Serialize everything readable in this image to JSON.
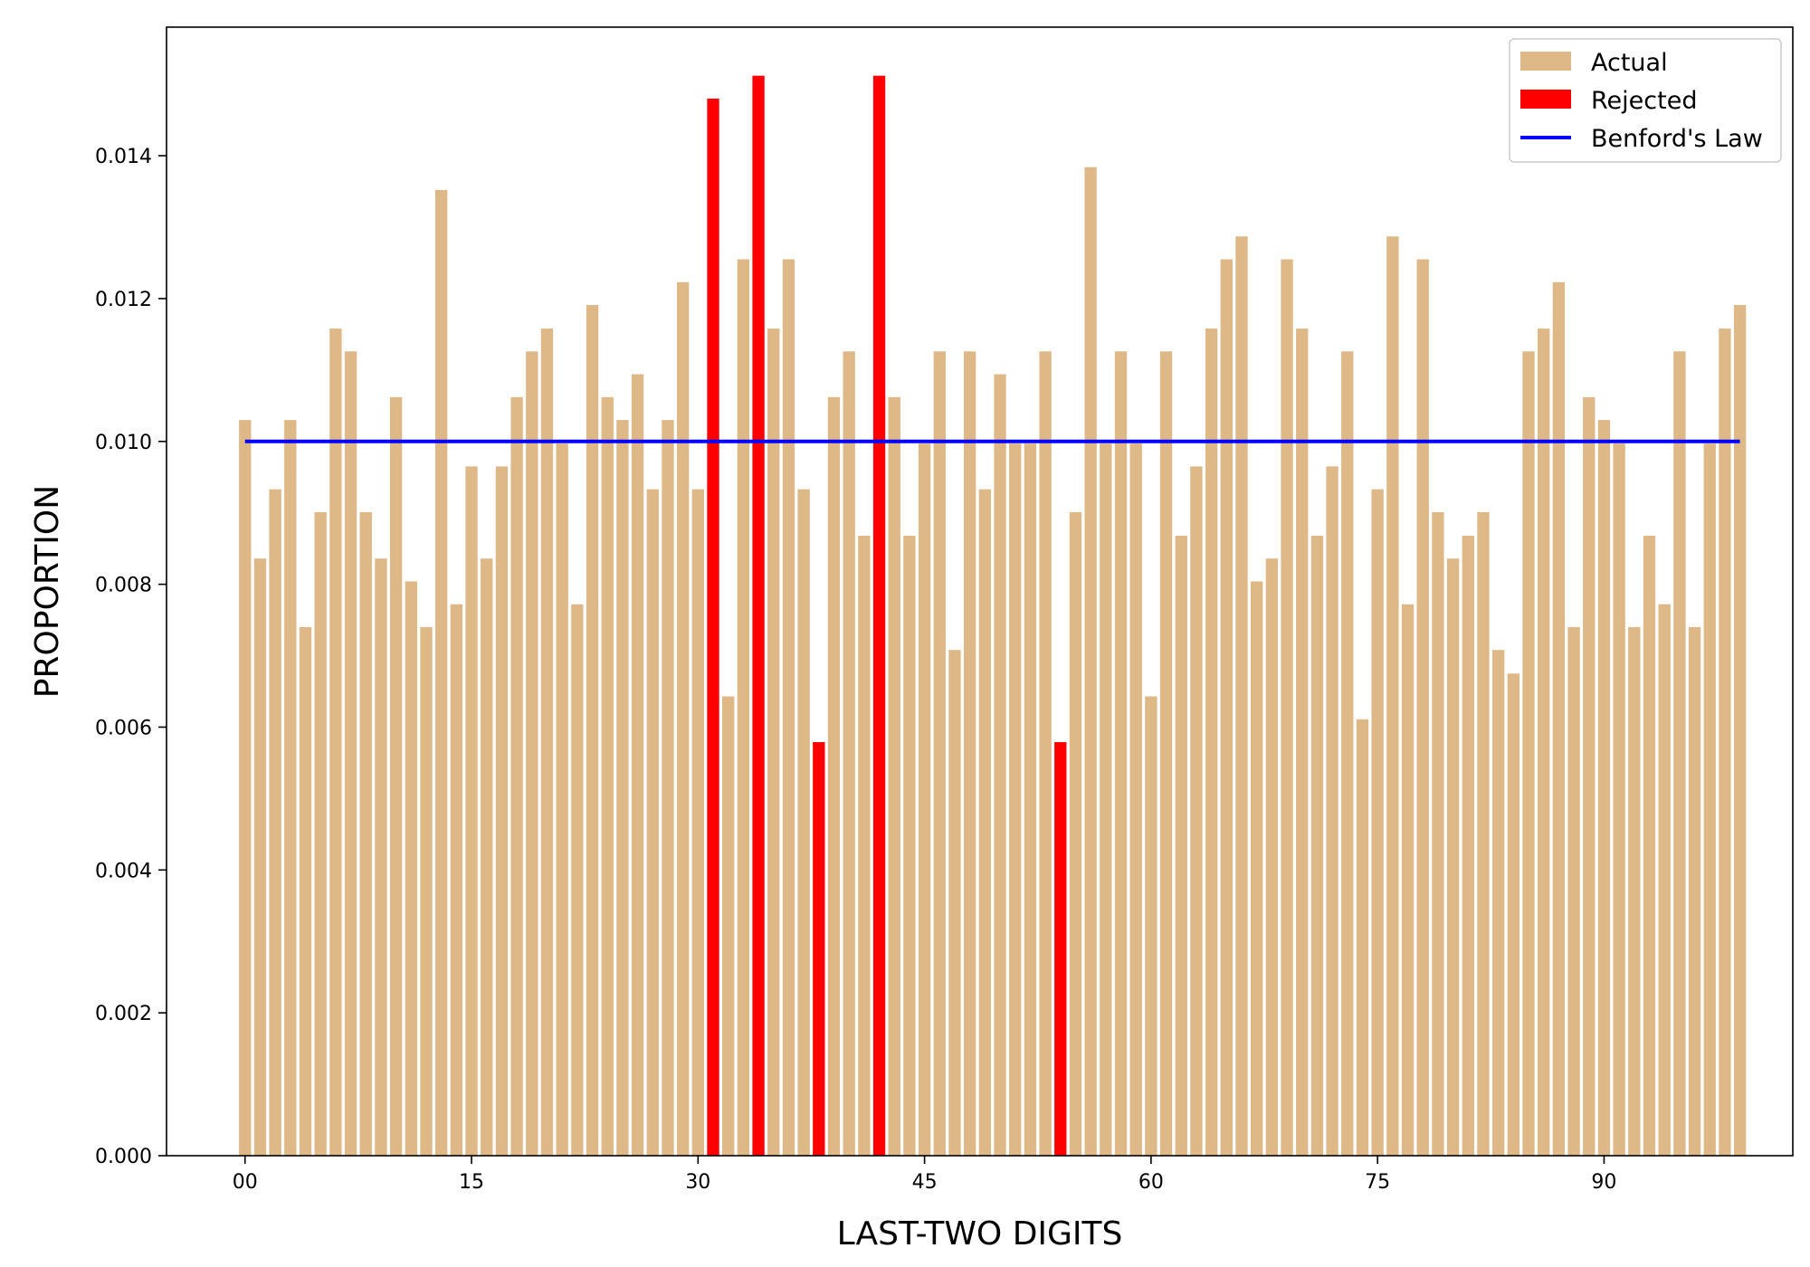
{
  "chart_data": {
    "type": "bar",
    "title": "",
    "xlabel": "LAST-TWO DIGITS",
    "ylabel": "PROPORTION",
    "x": [
      0,
      1,
      2,
      3,
      4,
      5,
      6,
      7,
      8,
      9,
      10,
      11,
      12,
      13,
      14,
      15,
      16,
      17,
      18,
      19,
      20,
      21,
      22,
      23,
      24,
      25,
      26,
      27,
      28,
      29,
      30,
      31,
      32,
      33,
      34,
      35,
      36,
      37,
      38,
      39,
      40,
      41,
      42,
      43,
      44,
      45,
      46,
      47,
      48,
      49,
      50,
      51,
      52,
      53,
      54,
      55,
      56,
      57,
      58,
      59,
      60,
      61,
      62,
      63,
      64,
      65,
      66,
      67,
      68,
      69,
      70,
      71,
      72,
      73,
      74,
      75,
      76,
      77,
      78,
      79,
      80,
      81,
      82,
      83,
      84,
      85,
      86,
      87,
      88,
      89,
      90,
      91,
      92,
      93,
      94,
      95,
      96,
      97,
      98,
      99
    ],
    "xlim": [
      -5.2,
      102.5
    ],
    "ylim": [
      0,
      0.0158
    ],
    "xticks": [
      0,
      15,
      30,
      45,
      60,
      75,
      90
    ],
    "xtick_labels": [
      "00",
      "15",
      "30",
      "45",
      "60",
      "75",
      "90"
    ],
    "yticks": [
      0,
      0.002,
      0.004,
      0.006,
      0.008,
      0.01,
      0.012,
      0.014
    ],
    "ytick_labels": [
      "0.000",
      "0.002",
      "0.004",
      "0.006",
      "0.008",
      "0.010",
      "0.012",
      "0.014"
    ],
    "grid": false,
    "legend_position": "top-right",
    "series": [
      {
        "name": "Actual",
        "kind": "bar",
        "color": "#deb887",
        "values": [
          0.0103,
          0.00836,
          0.00933,
          0.0103,
          0.0074,
          0.00901,
          0.01158,
          0.01126,
          0.00901,
          0.00836,
          0.01062,
          0.00804,
          0.0074,
          0.01352,
          0.00772,
          0.00965,
          0.00836,
          0.00965,
          0.01062,
          0.01126,
          0.01158,
          0.00997,
          0.00772,
          0.01191,
          0.01062,
          0.0103,
          0.01094,
          0.00933,
          0.0103,
          0.01223,
          0.00933,
          0.0148,
          0.00643,
          0.01255,
          0.01512,
          0.01158,
          0.01255,
          0.00933,
          0.00579,
          0.01062,
          0.01126,
          0.00868,
          0.01512,
          0.01062,
          0.00868,
          0.00997,
          0.01126,
          0.00708,
          0.01126,
          0.00933,
          0.01094,
          0.00997,
          0.00997,
          0.01126,
          0.00579,
          0.00901,
          0.01384,
          0.00997,
          0.01126,
          0.00997,
          0.00643,
          0.01126,
          0.00868,
          0.00965,
          0.01158,
          0.01255,
          0.01287,
          0.00804,
          0.00836,
          0.01255,
          0.01158,
          0.00868,
          0.00965,
          0.01126,
          0.00611,
          0.00933,
          0.01287,
          0.00772,
          0.01255,
          0.00901,
          0.00836,
          0.00868,
          0.00901,
          0.00708,
          0.00675,
          0.01126,
          0.01158,
          0.01223,
          0.0074,
          0.01062,
          0.0103,
          0.00997,
          0.0074,
          0.00868,
          0.00772,
          0.01126,
          0.0074,
          0.00997,
          0.01158,
          0.01191
        ]
      },
      {
        "name": "Rejected",
        "kind": "bar",
        "color": "#ff0000",
        "indices": [
          31,
          34,
          38,
          42,
          54
        ]
      },
      {
        "name": "Benford's Law",
        "kind": "line",
        "color": "#0000ff",
        "x": [
          0,
          99
        ],
        "values": [
          0.01,
          0.01
        ]
      }
    ]
  }
}
